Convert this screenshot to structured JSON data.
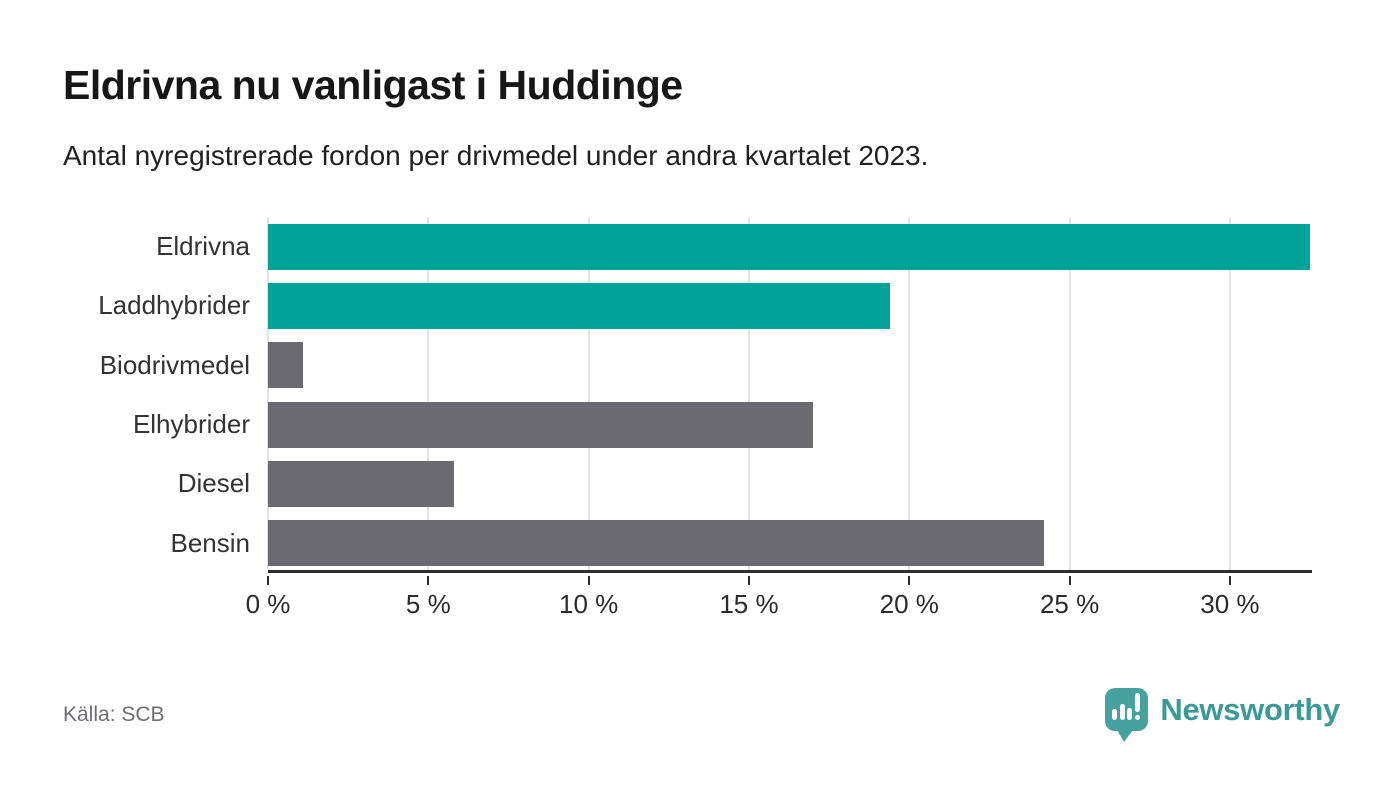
{
  "header": {
    "title": "Eldrivna nu vanligast i Huddinge",
    "subtitle": "Antal nyregistrerade fordon per drivmedel under andra kvartalet 2023."
  },
  "footer": {
    "source_label": "Källa: SCB",
    "brand_name": "Newsworthy",
    "brand_icon": "speech-bubble-bar-chart-exclamation"
  },
  "colors": {
    "accent_teal": "#00a39a",
    "neutral_gray": "#6b6a70",
    "gridline": "#e3e3e3",
    "axis": "#2d2d2d",
    "text_dark": "#171717",
    "source_text": "#6e6d75",
    "logo_teal": "#46a29f"
  },
  "chart_data": {
    "type": "bar",
    "orientation": "horizontal",
    "title": "Eldrivna nu vanligast i Huddinge",
    "subtitle": "Antal nyregistrerade fordon per drivmedel under andra kvartalet 2023.",
    "categories": [
      "Eldrivna",
      "Laddhybrider",
      "Biodrivmedel",
      "Elhybrider",
      "Diesel",
      "Bensin"
    ],
    "values": [
      32.5,
      19.4,
      1.1,
      17.0,
      5.8,
      24.2
    ],
    "unit": "%",
    "bar_color_keys": [
      "accent_teal",
      "accent_teal",
      "neutral_gray",
      "neutral_gray",
      "neutral_gray",
      "neutral_gray"
    ],
    "x_ticks": [
      0,
      5,
      10,
      15,
      20,
      25,
      30
    ],
    "x_tick_labels": [
      "0 %",
      "5 %",
      "10 %",
      "15 %",
      "20 %",
      "25 %",
      "30 %"
    ],
    "xlim": [
      0,
      32.56
    ],
    "grid": "vertical",
    "legend": "none"
  }
}
